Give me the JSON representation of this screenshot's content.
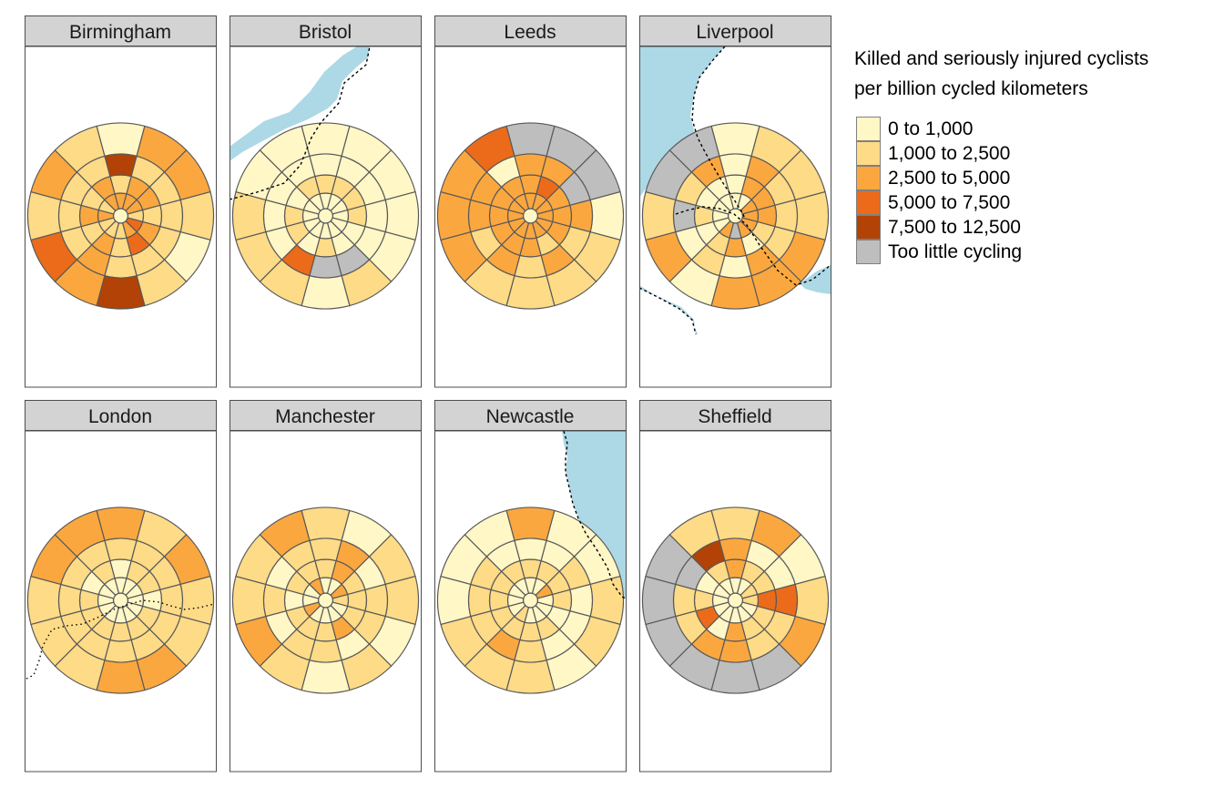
{
  "chart_data": {
    "type": "polar-grid-map",
    "title": "",
    "legend": {
      "title": "Killed and seriously injured cyclists\nper billion cycled kilometers",
      "placement": "right",
      "items": [
        {
          "key": "c0",
          "label": "0 to 1,000",
          "color": "#FFF7C6"
        },
        {
          "key": "c1",
          "label": "1,000 to 2,500",
          "color": "#FDDB87"
        },
        {
          "key": "c2",
          "label": "2,500 to 5,000",
          "color": "#FBA73F"
        },
        {
          "key": "c3",
          "label": "5,000 to 7,500",
          "color": "#EB6B1B"
        },
        {
          "key": "c4",
          "label": "7,500 to 12,500",
          "color": "#B24205"
        },
        {
          "key": "na",
          "label": "Too little cycling",
          "color": "#BEBEBE"
        }
      ]
    },
    "grid_note": "Each city is a polar grid of 5 rings x 12 sectors; ring 0 is the centre disc",
    "sectors": 12,
    "rings": 5,
    "water_color": "#ADD8E6",
    "panels": [
      {
        "name": "Birmingham",
        "cells": [
          [
            "c0"
          ],
          [
            "c2",
            "c2",
            "c2",
            "c1",
            "c3",
            "c2",
            "c1",
            "c1",
            "c1",
            "c2",
            "c1",
            "c2"
          ],
          [
            "c1",
            "c2",
            "c2",
            "c1",
            "c2",
            "c3",
            "c1",
            "c2",
            "c1",
            "c2",
            "c1",
            "c2"
          ],
          [
            "c4",
            "c1",
            "c1",
            "c1",
            "c1",
            "c1",
            "c1",
            "c2",
            "c1",
            "c1",
            "c1",
            "c1"
          ],
          [
            "c0",
            "c2",
            "c2",
            "c1",
            "c0",
            "c1",
            "c4",
            "c2",
            "c3",
            "c1",
            "c2",
            "c1"
          ]
        ]
      },
      {
        "name": "Bristol",
        "cells": [
          [
            "c0"
          ],
          [
            "c0",
            "c0",
            "c0",
            "c0",
            "c0",
            "c0",
            "c0",
            "c0",
            "c0",
            "c0",
            "c0",
            "c0"
          ],
          [
            "c1",
            "c1",
            "c1",
            "c1",
            "c0",
            "c0",
            "c1",
            "c0",
            "c1",
            "c1",
            "c0",
            "c1"
          ],
          [
            "c0",
            "c0",
            "c0",
            "c0",
            "c0",
            "na",
            "na",
            "c3",
            "c0",
            "c0",
            "c0",
            "c0"
          ],
          [
            "c0",
            "c0",
            "c0",
            "c0",
            "c0",
            "c1",
            "c0",
            "c1",
            "c1",
            "c1",
            "c0",
            "c0"
          ]
        ]
      },
      {
        "name": "Leeds",
        "cells": [
          [
            "c0"
          ],
          [
            "c2",
            "c2",
            "c2",
            "c2",
            "c2",
            "c2",
            "c2",
            "c2",
            "c2",
            "c2",
            "c2",
            "c2"
          ],
          [
            "c2",
            "c3",
            "c2",
            "c2",
            "c2",
            "c1",
            "c2",
            "c2",
            "c2",
            "c2",
            "c2",
            "c2"
          ],
          [
            "c2",
            "c2",
            "na",
            "c2",
            "c1",
            "c2",
            "c1",
            "c2",
            "c1",
            "c2",
            "c2",
            "c0"
          ],
          [
            "na",
            "na",
            "na",
            "c0",
            "c1",
            "c1",
            "c1",
            "c1",
            "c2",
            "c2",
            "c2",
            "c3"
          ]
        ]
      },
      {
        "name": "Liverpool",
        "cells": [
          [
            "c0"
          ],
          [
            "c0",
            "c0",
            "c2",
            "c2",
            "c2",
            "c2",
            "na",
            "c2",
            "c0",
            "c0",
            "c0",
            "c0"
          ],
          [
            "c0",
            "c2",
            "c2",
            "c2",
            "c1",
            "c0",
            "c2",
            "c1",
            "c0",
            "c1",
            "c0",
            "c0"
          ],
          [
            "c0",
            "c2",
            "c1",
            "c1",
            "c1",
            "c2",
            "c0",
            "c1",
            "c0",
            "na",
            "c1",
            "c2"
          ],
          [
            "c0",
            "c1",
            "c1",
            "c1",
            "c2",
            "c2",
            "c2",
            "c0",
            "c2",
            "c1",
            "na",
            "na"
          ]
        ]
      },
      {
        "name": "London",
        "cells": [
          [
            "c0"
          ],
          [
            "c0",
            "c0",
            "c0",
            "c0",
            "c0",
            "c0",
            "c0",
            "c0",
            "c0",
            "c0",
            "c0",
            "c0"
          ],
          [
            "c0",
            "c1",
            "c1",
            "c0",
            "c1",
            "c1",
            "c1",
            "c1",
            "c1",
            "c1",
            "c0",
            "c1"
          ],
          [
            "c1",
            "c1",
            "c1",
            "c1",
            "c1",
            "c1",
            "c1",
            "c1",
            "c1",
            "c1",
            "c1",
            "c1"
          ],
          [
            "c2",
            "c1",
            "c2",
            "c1",
            "c1",
            "c2",
            "c2",
            "c1",
            "c1",
            "c1",
            "c2",
            "c2"
          ]
        ]
      },
      {
        "name": "Manchester",
        "cells": [
          [
            "c0"
          ],
          [
            "c0",
            "c0",
            "c2",
            "c1",
            "c0",
            "c0",
            "c0",
            "c0",
            "c2",
            "c0",
            "c0",
            "c2"
          ],
          [
            "c1",
            "c2",
            "c1",
            "c1",
            "c1",
            "c2",
            "c1",
            "c1",
            "c1",
            "c0",
            "c1",
            "c1"
          ],
          [
            "c1",
            "c2",
            "c0",
            "c1",
            "c1",
            "c0",
            "c1",
            "c1",
            "c0",
            "c1",
            "c0",
            "c1"
          ],
          [
            "c1",
            "c0",
            "c1",
            "c1",
            "c0",
            "c1",
            "c0",
            "c1",
            "c2",
            "c1",
            "c1",
            "c2"
          ]
        ]
      },
      {
        "name": "Newcastle",
        "cells": [
          [
            "c0"
          ],
          [
            "c0",
            "c0",
            "c2",
            "c0",
            "c0",
            "c0",
            "c0",
            "c1",
            "c0",
            "c0",
            "c0",
            "c0"
          ],
          [
            "c1",
            "c1",
            "c1",
            "c1",
            "c0",
            "c1",
            "c1",
            "c1",
            "c1",
            "c1",
            "c1",
            "c1"
          ],
          [
            "c0",
            "c0",
            "c1",
            "c0",
            "c0",
            "c0",
            "c1",
            "c2",
            "c1",
            "c1",
            "c1",
            "c0"
          ],
          [
            "c2",
            "c0",
            "c0",
            "c1",
            "c1",
            "c0",
            "c1",
            "c1",
            "c1",
            "c0",
            "c0",
            "c0"
          ]
        ]
      },
      {
        "name": "Sheffield",
        "cells": [
          [
            "c0"
          ],
          [
            "c0",
            "c0",
            "c1",
            "c1",
            "c0",
            "c0",
            "c0",
            "c0",
            "c0",
            "c0",
            "c0",
            "c0"
          ],
          [
            "c2",
            "c1",
            "c1",
            "c3",
            "c1",
            "c1",
            "c2",
            "c0",
            "c3",
            "c1",
            "c0",
            "c1"
          ],
          [
            "c2",
            "c0",
            "c0",
            "c3",
            "c1",
            "c1",
            "c2",
            "c2",
            "c1",
            "c1",
            "na",
            "c4"
          ],
          [
            "c1",
            "c2",
            "c0",
            "c1",
            "c2",
            "na",
            "na",
            "na",
            "na",
            "na",
            "na",
            "c1"
          ]
        ]
      }
    ]
  }
}
